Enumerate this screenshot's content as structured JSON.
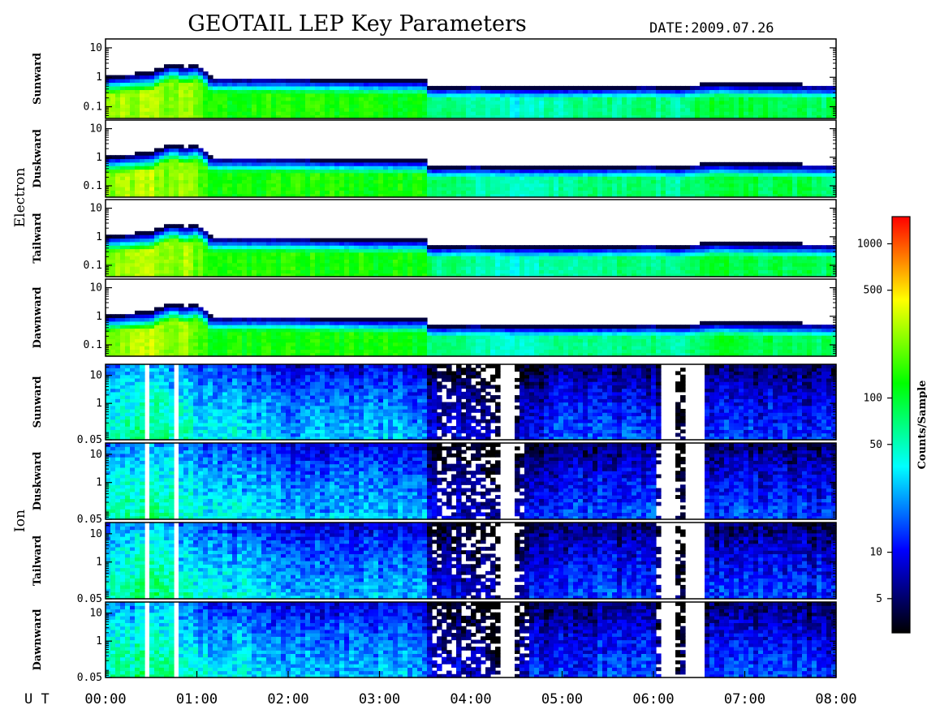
{
  "header": {
    "title": "GEOTAIL LEP Key Parameters",
    "date_label": "DATE:",
    "date_value": "2009.07.26"
  },
  "colors": {
    "colormap": [
      "#000000",
      "#0000ff",
      "#00ffff",
      "#00ff00",
      "#ffff00",
      "#ff0000"
    ]
  },
  "chart_data": {
    "type": "heatmap",
    "time_axis": {
      "prefix": "U T",
      "ticks": [
        "00:00",
        "01:00",
        "02:00",
        "03:00",
        "04:00",
        "05:00",
        "06:00",
        "07:00",
        "08:00"
      ],
      "range_hours": [
        0,
        8
      ]
    },
    "groups": [
      {
        "name": "Electron",
        "yscale": "log",
        "ylim": [
          0.04,
          20
        ],
        "yticks": [
          "10",
          "1",
          "0.1"
        ],
        "panels": [
          {
            "name": "Sunward"
          },
          {
            "name": "Duskward"
          },
          {
            "name": "Tailward"
          },
          {
            "name": "Dawnward"
          }
        ],
        "profile": {
          "hours": [
            0,
            0.5,
            0.75,
            0.85,
            1.0,
            1.15,
            2.0,
            3.0,
            3.5,
            3.55,
            4.0,
            4.5,
            5.0,
            6.0,
            6.3,
            6.7,
            7.0,
            8.0
          ],
          "upper_edge": [
            0.9,
            1.2,
            2.5,
            1.8,
            2.3,
            0.8,
            0.8,
            0.7,
            0.7,
            0.4,
            0.45,
            0.4,
            0.4,
            0.45,
            0.4,
            0.55,
            0.5,
            0.45
          ],
          "peak_counts": [
            230,
            300,
            220,
            280,
            200,
            120,
            140,
            130,
            120,
            70,
            60,
            40,
            60,
            70,
            60,
            100,
            90,
            80
          ]
        }
      },
      {
        "name": "Ion",
        "yscale": "log",
        "ylim": [
          0.05,
          25
        ],
        "yticks": [
          "10",
          "1",
          "0.05"
        ],
        "panels": [
          {
            "name": "Sunward"
          },
          {
            "name": "Duskward"
          },
          {
            "name": "Tailward"
          },
          {
            "name": "Dawnward"
          }
        ],
        "profile": {
          "hours": [
            0,
            0.5,
            1.0,
            1.5,
            2.0,
            3.0,
            3.5,
            3.55,
            4.0,
            4.3,
            4.45,
            4.6,
            5.0,
            6.0,
            6.1,
            6.4,
            6.6,
            7.0,
            8.0
          ],
          "peak_counts": [
            45,
            70,
            40,
            35,
            25,
            25,
            25,
            9,
            8,
            5,
            3,
            10,
            14,
            14,
            3,
            5,
            12,
            14,
            12
          ],
          "gaps_hours": [
            [
              0.45,
              0.5
            ],
            [
              0.75,
              0.8
            ],
            [
              4.3,
              4.5
            ],
            [
              6.1,
              6.25
            ],
            [
              6.35,
              6.55
            ]
          ]
        }
      }
    ],
    "colorbar": {
      "label": "Counts/Sample",
      "scale": "log",
      "range": [
        3,
        1500
      ],
      "ticks": [
        5,
        10,
        50,
        100,
        500,
        1000
      ]
    }
  }
}
